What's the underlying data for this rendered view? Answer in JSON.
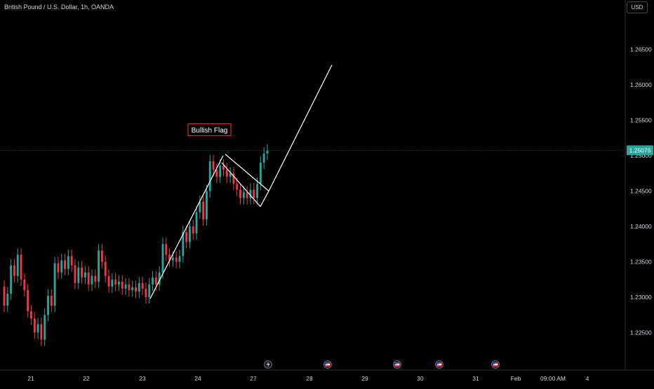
{
  "header": {
    "symbol_title": "British Pound / U.S. Dollar, 1h, OANDA",
    "currency": "USD"
  },
  "annotation": {
    "label": "Bullish Flag",
    "border_color": "#f23645"
  },
  "colors": {
    "up": "#26a69a",
    "down": "#f23645",
    "line": "#ffffff",
    "background": "#000000",
    "price_line": "#26a69a"
  },
  "current_price": {
    "value": 1.25076,
    "label": "1.25076"
  },
  "chart_data": {
    "type": "candlestick",
    "title": "British Pound / U.S. Dollar, 1h, OANDA",
    "ylim": [
      1.2205,
      1.27
    ],
    "y_ticks": [
      1.225,
      1.23,
      1.235,
      1.24,
      1.245,
      1.25,
      1.255,
      1.26,
      1.265
    ],
    "y_tick_labels": [
      "1.22500",
      "1.23000",
      "1.23500",
      "1.24000",
      "1.24500",
      "1.25000",
      "1.25500",
      "1.26000",
      "1.26500"
    ],
    "x_tick_labels": [
      "21",
      "22",
      "23",
      "24",
      "27",
      "28",
      "29",
      "30",
      "31",
      "Feb",
      "09:00 AM",
      "4"
    ],
    "grid": false,
    "annotation_label": "Bullish Flag",
    "price_path": [
      [
        1.2315,
        1.2288
      ],
      [
        1.2288,
        1.2305
      ],
      [
        1.2305,
        1.2345
      ],
      [
        1.2345,
        1.233
      ],
      [
        1.233,
        1.236
      ],
      [
        1.236,
        1.2325
      ],
      [
        1.2325,
        1.231
      ],
      [
        1.231,
        1.228
      ],
      [
        1.228,
        1.227
      ],
      [
        1.227,
        1.225
      ],
      [
        1.225,
        1.2262
      ],
      [
        1.2262,
        1.224
      ],
      [
        1.224,
        1.2275
      ],
      [
        1.2275,
        1.2302
      ],
      [
        1.2302,
        1.2288
      ],
      [
        1.2288,
        1.2348
      ],
      [
        1.2348,
        1.2335
      ],
      [
        1.2335,
        1.2352
      ],
      [
        1.2352,
        1.234
      ],
      [
        1.234,
        1.2358
      ],
      [
        1.2358,
        1.2345
      ],
      [
        1.2345,
        1.232
      ],
      [
        1.232,
        1.2342
      ],
      [
        1.2342,
        1.2328
      ],
      [
        1.2328,
        1.2335
      ],
      [
        1.2335,
        1.2318
      ],
      [
        1.2318,
        1.233
      ],
      [
        1.233,
        1.2322
      ],
      [
        1.2322,
        1.2366
      ],
      [
        1.2366,
        1.235
      ],
      [
        1.235,
        1.233
      ],
      [
        1.233,
        1.2315
      ],
      [
        1.2315,
        1.2325
      ],
      [
        1.2325,
        1.2318
      ],
      [
        1.2318,
        1.2322
      ],
      [
        1.2322,
        1.2312
      ],
      [
        1.2312,
        1.2318
      ],
      [
        1.2318,
        1.231
      ],
      [
        1.231,
        1.2314
      ],
      [
        1.2314,
        1.2308
      ],
      [
        1.2308,
        1.232
      ],
      [
        1.232,
        1.2312
      ],
      [
        1.2312,
        1.23
      ],
      [
        1.23,
        1.2318
      ],
      [
        1.2318,
        1.2328
      ],
      [
        1.2328,
        1.2318
      ],
      [
        1.2318,
        1.2335
      ],
      [
        1.2335,
        1.2375
      ],
      [
        1.2375,
        1.236
      ],
      [
        1.236,
        1.2352
      ],
      [
        1.2352,
        1.2356
      ],
      [
        1.2356,
        1.235
      ],
      [
        1.235,
        1.2358
      ],
      [
        1.2358,
        1.2392
      ],
      [
        1.2392,
        1.2378
      ],
      [
        1.2378,
        1.24
      ],
      [
        1.24,
        1.239
      ],
      [
        1.239,
        1.242
      ],
      [
        1.242,
        1.2435
      ],
      [
        1.2435,
        1.241
      ],
      [
        1.241,
        1.245
      ],
      [
        1.245,
        1.2492
      ],
      [
        1.2492,
        1.248
      ],
      [
        1.248,
        1.247
      ],
      [
        1.247,
        1.2486
      ],
      [
        1.2486,
        1.248
      ],
      [
        1.248,
        1.247
      ],
      [
        1.247,
        1.2475
      ],
      [
        1.2475,
        1.246
      ],
      [
        1.246,
        1.2452
      ],
      [
        1.2452,
        1.244
      ],
      [
        1.244,
        1.2448
      ],
      [
        1.2448,
        1.244
      ],
      [
        1.244,
        1.2452
      ],
      [
        1.2452,
        1.244
      ],
      [
        1.244,
        1.246
      ],
      [
        1.246,
        1.249
      ],
      [
        1.249,
        1.2503
      ],
      [
        1.2503,
        1.2507
      ]
    ],
    "drawings": {
      "flagpole": [
        [
          1.2298,
          1.25
        ]
      ],
      "flag_upper": [
        1.2502,
        1.245
      ],
      "flag_lower": [
        1.249,
        1.2428
      ],
      "projection_to": 1.2628
    }
  },
  "events": [
    {
      "name": "lightning-icon"
    },
    {
      "name": "flag-icon-1"
    },
    {
      "name": "flag-icon-2"
    },
    {
      "name": "flag-icon-3"
    },
    {
      "name": "flag-icon-4"
    }
  ]
}
